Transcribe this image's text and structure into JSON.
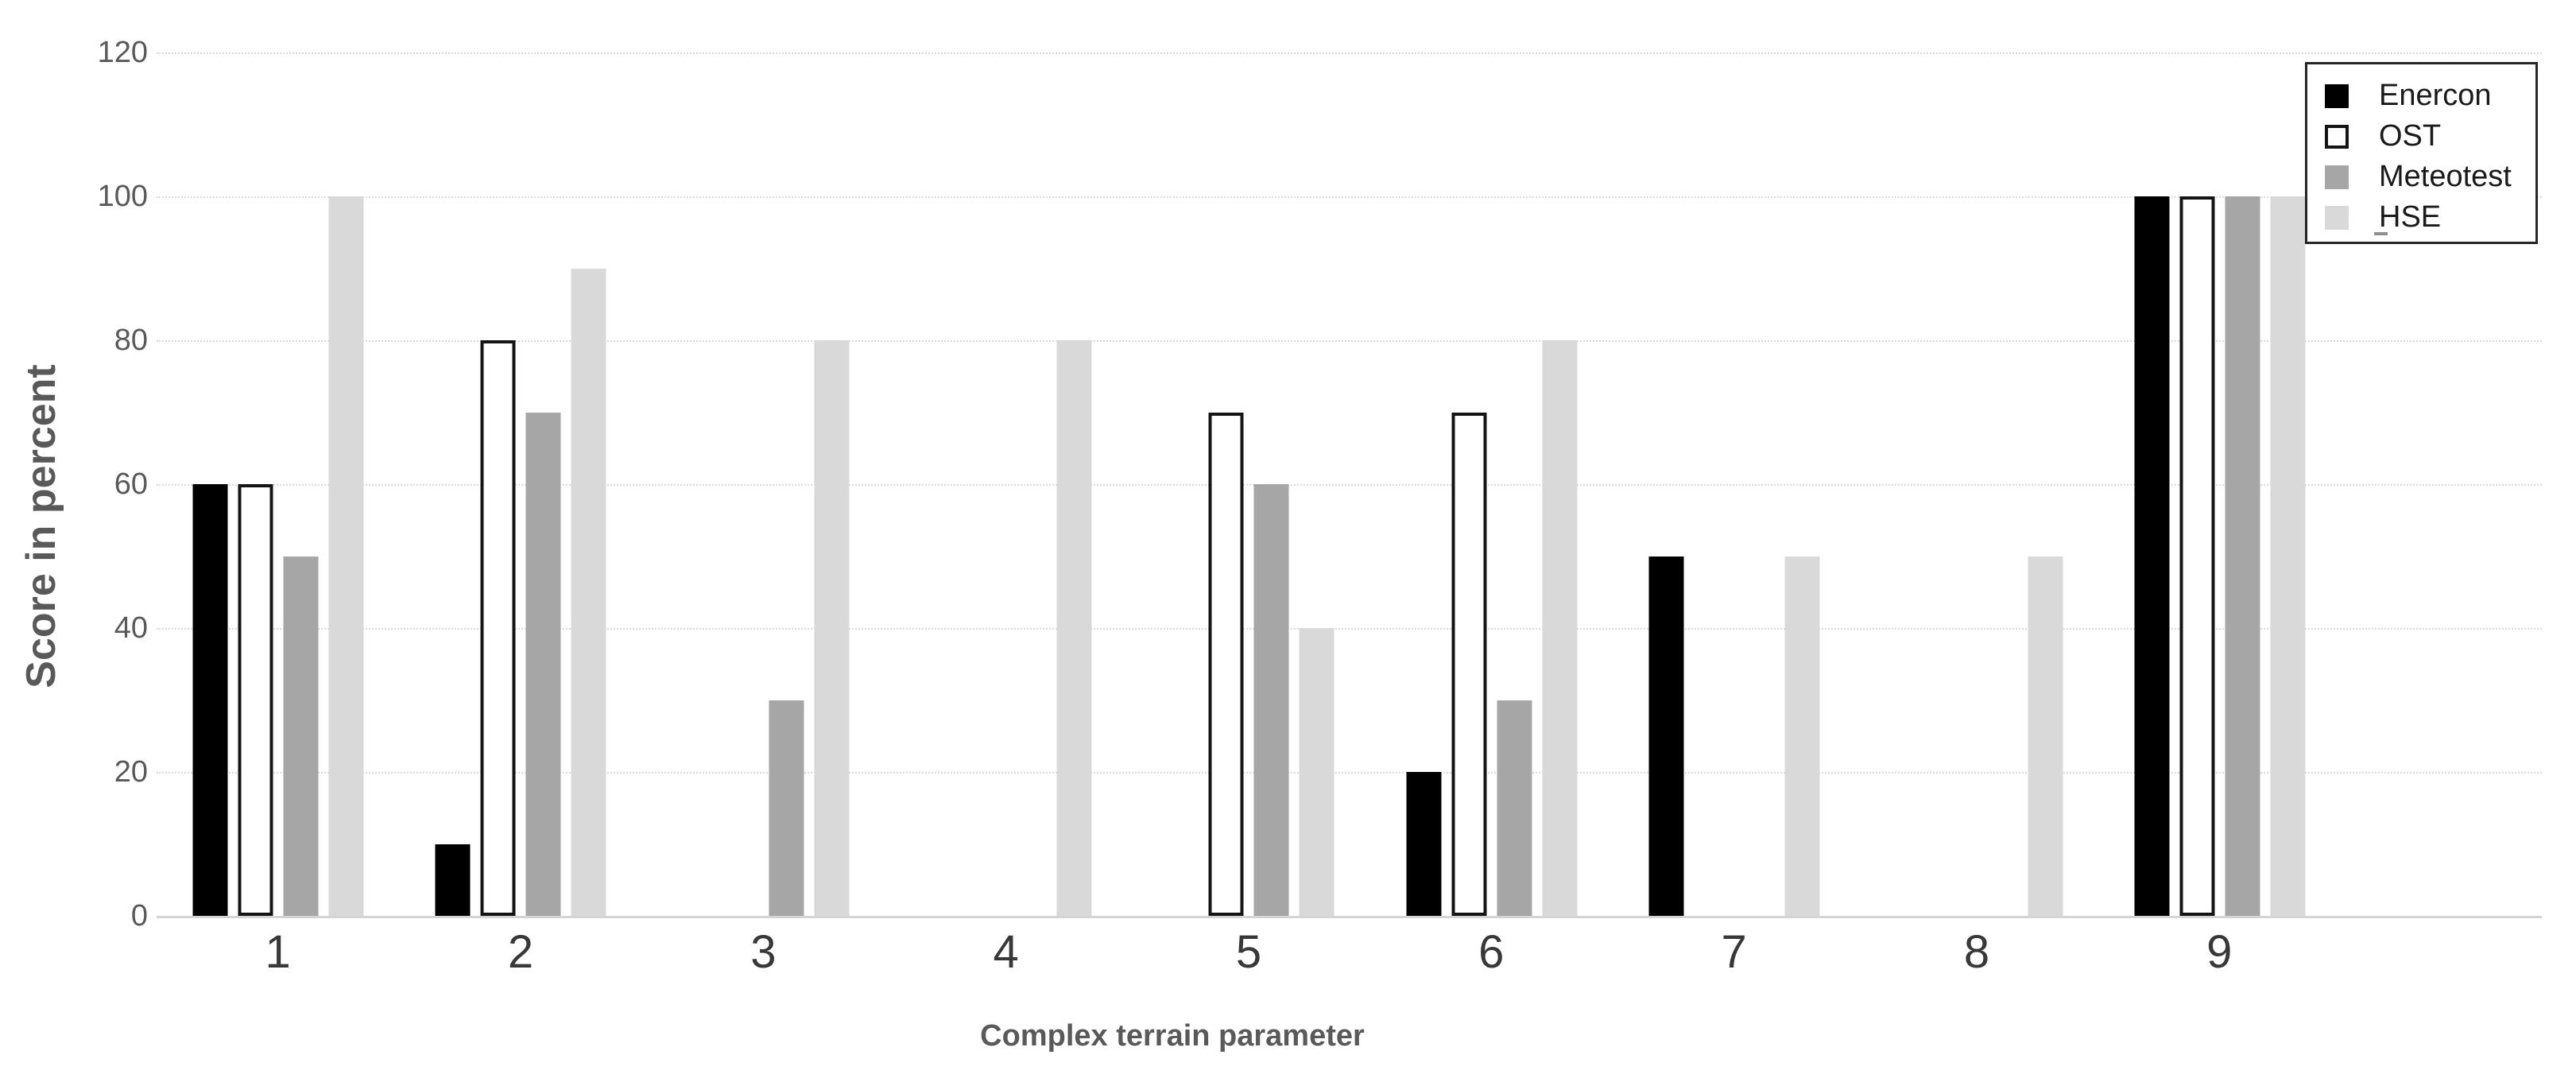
{
  "chart_data": {
    "type": "bar",
    "title": "",
    "xlabel": "Complex terrain parameter",
    "ylabel": "Score in percent",
    "categories": [
      "1",
      "2",
      "3",
      "4",
      "5",
      "6",
      "7",
      "8",
      "9"
    ],
    "series": [
      {
        "name": "Enercon",
        "color": "#000000",
        "border": null,
        "values": [
          60,
          10,
          0,
          0,
          0,
          20,
          50,
          0,
          100
        ]
      },
      {
        "name": "OST",
        "color": "#ffffff",
        "border": "#141414",
        "values": [
          60,
          80,
          0,
          0,
          70,
          70,
          0,
          0,
          100
        ]
      },
      {
        "name": "Meteotest",
        "color": "#a6a6a6",
        "border": null,
        "values": [
          50,
          70,
          30,
          0,
          60,
          30,
          0,
          0,
          100
        ]
      },
      {
        "name": "HSE",
        "color": "#d9d9d9",
        "border": null,
        "values": [
          100,
          90,
          80,
          80,
          40,
          80,
          50,
          50,
          100
        ]
      }
    ],
    "ylim": [
      0,
      120
    ],
    "yticks": [
      0,
      20,
      40,
      60,
      80,
      100,
      120
    ],
    "grid": true,
    "legend_position": "top-right",
    "legend_clipped_item_dash": "-",
    "colors": {
      "gridline": "#d9d9d9",
      "axis_line": "#d4d4d4",
      "tick_label": "#595959",
      "axis_title": "#595959",
      "category_label": "#383838",
      "legend_border": "#262626",
      "background": "#ffffff"
    }
  }
}
